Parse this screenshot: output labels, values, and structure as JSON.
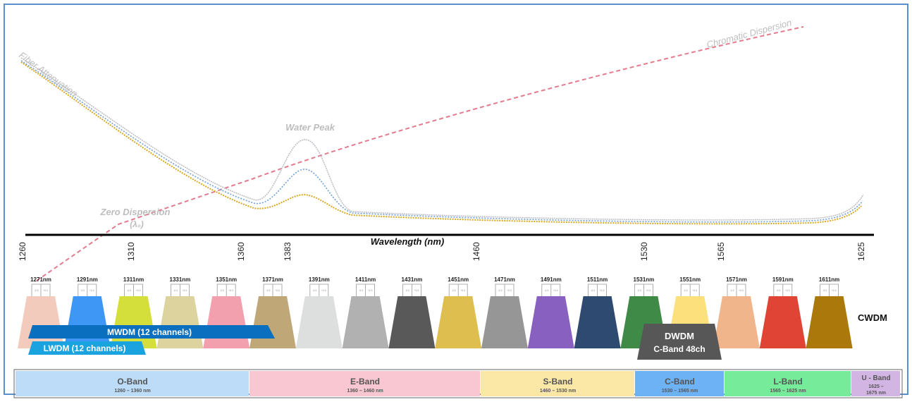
{
  "labels": {
    "fiber_attenuation": "Fiber Attenuation",
    "chromatic_dispersion": "Chromatic Dispersion",
    "water_peak": "Water Peak",
    "zero_dispersion": "Zero Dispersion",
    "zero_dispersion_symbol": "(λ₀)",
    "axis_title": "Wavelength (nm)",
    "cwdm": "CWDM",
    "mwdm": "MWDM (12 channels)",
    "lwdm": "LWDM (12 channels)",
    "dwdm_line1": "DWDM",
    "dwdm_line2": "C-Band 48ch"
  },
  "axis_ticks": [
    "1260",
    "1310",
    "1360",
    "1383",
    "1460",
    "1530",
    "1565",
    "1625"
  ],
  "channels": [
    {
      "label": "1271nm",
      "color": "#f3cbbd"
    },
    {
      "label": "1291nm",
      "color": "#3f97f5"
    },
    {
      "label": "1311nm",
      "color": "#d4df3c"
    },
    {
      "label": "1331nm",
      "color": "#dcd39e"
    },
    {
      "label": "1351nm",
      "color": "#f3a0ae"
    },
    {
      "label": "1371nm",
      "color": "#bfa777"
    },
    {
      "label": "1391nm",
      "color": "#dddede"
    },
    {
      "label": "1411nm",
      "color": "#b1b1b1"
    },
    {
      "label": "1431nm",
      "color": "#595959"
    },
    {
      "label": "1451nm",
      "color": "#dfbe50"
    },
    {
      "label": "1471nm",
      "color": "#969696"
    },
    {
      "label": "1491nm",
      "color": "#8860bf"
    },
    {
      "label": "1511nm",
      "color": "#2f4a70"
    },
    {
      "label": "1531nm",
      "color": "#3f8a46"
    },
    {
      "label": "1551nm",
      "color": "#fbe07c"
    },
    {
      "label": "1571nm",
      "color": "#f1b58c"
    },
    {
      "label": "1591nm",
      "color": "#e04434"
    },
    {
      "label": "1611nm",
      "color": "#aa780b"
    }
  ],
  "channel_ticks": [
    "-6.5",
    "+6.5"
  ],
  "bands": [
    {
      "name": "O-Band",
      "range": "1260 – 1360 nm",
      "color": "#bcdcf8"
    },
    {
      "name": "E-Band",
      "range": "1360 – 1460 nm",
      "color": "#f8c7d1"
    },
    {
      "name": "S-Band",
      "range": "1460 – 1530 nm",
      "color": "#fbe8a6"
    },
    {
      "name": "C-Band",
      "range": "1530 – 1565 nm",
      "color": "#6cb2f4"
    },
    {
      "name": "L-Band",
      "range": "1565 – 1625 nm",
      "color": "#76eb9a"
    },
    {
      "name": "U - Band",
      "range": "1625 – 1675 nm",
      "color": "#d3b5e4"
    }
  ],
  "colors": {
    "frame": "#5b8fc9",
    "dispersion": "#e37b8e",
    "attenuation_grey": "#b8b8c0",
    "attenuation_blue": "#6e9fd8",
    "attenuation_yellow": "#d9a822",
    "label_grey": "#bdbdbd",
    "mwdm": "#0a6fbe",
    "lwdm": "#1aa3df",
    "dwdm": "#575757"
  }
}
